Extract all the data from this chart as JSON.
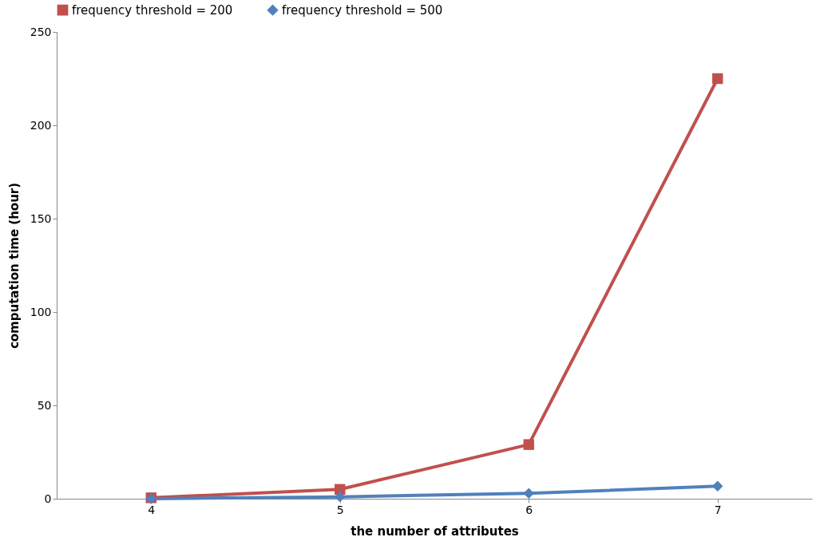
{
  "chart_data": {
    "type": "line",
    "xlabel": "the number of attributes",
    "ylabel": "computation time (hour)",
    "categories": [
      "4",
      "5",
      "6",
      "7"
    ],
    "ylim": [
      0,
      250
    ],
    "yticks": [
      0,
      50,
      100,
      150,
      200,
      250
    ],
    "grid": false,
    "legend": "top",
    "line_style": "solid",
    "series": [
      {
        "name": "frequency threshold = 200",
        "color": "#c0504d",
        "marker": "square",
        "values": [
          0.5,
          5,
          29,
          225
        ]
      },
      {
        "name": "frequency threshold = 500",
        "color": "#4f81bd",
        "marker": "diamond",
        "values": [
          0,
          1,
          2.9,
          6.7
        ]
      }
    ]
  }
}
